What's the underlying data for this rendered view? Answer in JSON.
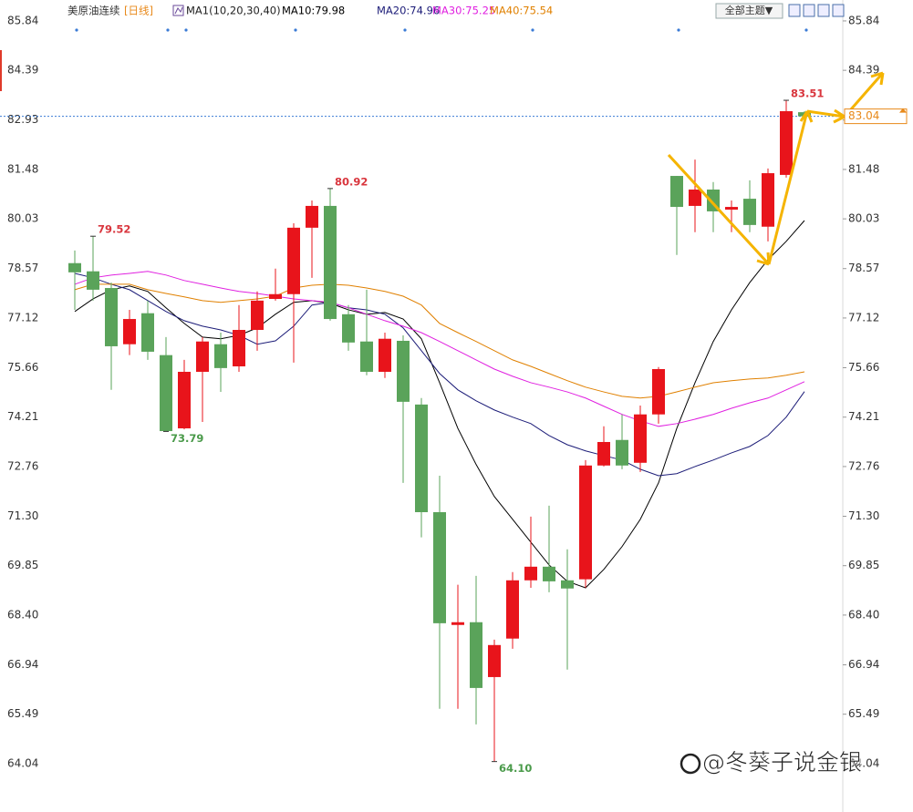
{
  "header": {
    "symbol": "美原油连续",
    "period": "[日线]",
    "indicator": "MA1(10,20,30,40)",
    "theme_button": "全部主题▼"
  },
  "watermark": "@冬葵子说金银",
  "chart_data": {
    "type": "candlestick",
    "open": [
      78.73,
      78.49,
      78.0,
      76.35,
      77.26,
      76.03,
      73.88,
      75.54,
      76.35,
      75.7,
      76.77,
      77.68,
      77.82,
      79.77,
      80.41,
      77.23,
      76.43,
      75.54,
      76.45,
      74.58,
      71.42,
      68.11,
      68.19,
      66.58,
      67.71,
      69.42,
      69.82,
      69.42,
      69.45,
      72.79,
      73.54,
      72.87,
      74.29,
      81.29,
      80.41,
      80.89,
      80.3,
      80.62,
      79.8,
      81.32,
      83.16
    ],
    "high": [
      79.1,
      79.52,
      78.16,
      77.36,
      77.63,
      76.56,
      75.89,
      76.56,
      76.69,
      77.5,
      77.9,
      78.57,
      79.9,
      80.57,
      80.92,
      77.5,
      77.95,
      76.69,
      76.61,
      74.77,
      72.49,
      69.29,
      69.55,
      67.68,
      69.66,
      71.29,
      71.61,
      70.33,
      72.95,
      73.94,
      74.29,
      74.55,
      75.68,
      81.29,
      81.77,
      81.11,
      80.57,
      81.16,
      81.51,
      83.51,
      83.19
    ],
    "low": [
      77.36,
      77.63,
      75.01,
      76.03,
      75.89,
      73.79,
      73.85,
      74.07,
      74.95,
      75.54,
      76.16,
      77.63,
      75.81,
      78.3,
      77.04,
      76.16,
      75.44,
      75.36,
      72.28,
      70.68,
      65.65,
      65.65,
      65.19,
      64.1,
      67.41,
      69.2,
      69.07,
      66.8,
      69.2,
      72.76,
      72.68,
      72.6,
      74.02,
      78.97,
      79.64,
      79.64,
      79.64,
      79.64,
      79.37,
      81.24,
      83.04
    ],
    "close": [
      78.46,
      77.95,
      76.29,
      77.09,
      76.13,
      73.8,
      75.54,
      76.43,
      75.65,
      76.77,
      77.63,
      77.82,
      79.77,
      80.41,
      77.09,
      76.4,
      75.54,
      76.51,
      74.66,
      71.42,
      68.16,
      68.19,
      66.26,
      67.52,
      69.42,
      69.82,
      69.39,
      69.18,
      72.79,
      73.48,
      72.79,
      74.29,
      75.62,
      80.38,
      80.89,
      80.25,
      80.38,
      79.85,
      81.37,
      83.19,
      83.04
    ],
    "up_color": "#e8141b",
    "down_color": "#5aa35a",
    "ylim": [
      62.78,
      86.32
    ],
    "yticks": [
      85.84,
      84.39,
      82.93,
      81.48,
      80.03,
      78.57,
      77.12,
      75.66,
      74.21,
      72.76,
      {
        "value": 71.3,
        "label": "71.30"
      },
      69.85,
      {
        "value": 68.4,
        "label": "68.40"
      },
      66.94,
      65.49,
      64.04
    ],
    "series": [
      {
        "name": "MA10:79.98",
        "color": "#000000",
        "values": [
          77.31,
          77.68,
          77.95,
          78.06,
          77.9,
          77.42,
          76.96,
          76.56,
          76.51,
          76.61,
          76.83,
          77.23,
          77.58,
          77.63,
          77.55,
          77.36,
          77.23,
          77.28,
          77.09,
          76.51,
          75.22,
          73.88,
          72.82,
          71.88,
          71.21,
          70.54,
          69.87,
          69.39,
          69.2,
          69.74,
          70.41,
          71.21,
          72.28,
          73.88,
          75.22,
          76.43,
          77.36,
          78.16,
          78.83,
          79.37,
          79.98
        ]
      },
      {
        "name": "MA20:74.96",
        "color": "#1c1c78",
        "values": [
          78.43,
          78.3,
          78.11,
          77.95,
          77.63,
          77.31,
          77.04,
          76.88,
          76.77,
          76.61,
          76.35,
          76.45,
          76.88,
          77.5,
          77.58,
          77.42,
          77.36,
          77.23,
          76.83,
          76.16,
          75.49,
          75.01,
          74.69,
          74.42,
          74.21,
          74.02,
          73.67,
          73.4,
          73.22,
          73.08,
          72.95,
          72.68,
          72.49,
          72.55,
          72.76,
          72.95,
          73.16,
          73.35,
          73.67,
          74.21,
          74.96
        ]
      },
      {
        "name": "MA30:75.25",
        "color": "#e020e0",
        "values": [
          78.11,
          78.3,
          78.38,
          78.43,
          78.49,
          78.38,
          78.22,
          78.11,
          78.0,
          77.9,
          77.84,
          77.76,
          77.68,
          77.63,
          77.58,
          77.42,
          77.23,
          77.04,
          76.88,
          76.69,
          76.43,
          76.16,
          75.89,
          75.62,
          75.41,
          75.22,
          75.09,
          74.95,
          74.77,
          74.53,
          74.29,
          74.1,
          73.94,
          74.02,
          74.15,
          74.29,
          74.47,
          74.63,
          74.77,
          75.01,
          75.25
        ]
      },
      {
        "name": "MA40:75.54",
        "color": "#e08000",
        "values": [
          77.95,
          78.11,
          78.11,
          78.11,
          77.95,
          77.84,
          77.74,
          77.63,
          77.58,
          77.63,
          77.68,
          77.76,
          78.0,
          78.08,
          78.11,
          78.08,
          78.0,
          77.9,
          77.76,
          77.5,
          76.96,
          76.69,
          76.43,
          76.16,
          75.89,
          75.7,
          75.49,
          75.28,
          75.09,
          74.95,
          74.82,
          74.77,
          74.82,
          74.95,
          75.09,
          75.22,
          75.28,
          75.33,
          75.36,
          75.44,
          75.54
        ]
      }
    ],
    "annotations": [
      {
        "label": "79.52",
        "value": 79.52
      },
      {
        "label": "80.92",
        "value": 80.92
      },
      {
        "label": "73.79",
        "value": 73.79
      },
      {
        "label": "64.10",
        "value": 64.1
      },
      {
        "label": "83.51",
        "value": 83.51
      }
    ],
    "last_price": 83.04,
    "last_price_color": "#e8891a"
  }
}
